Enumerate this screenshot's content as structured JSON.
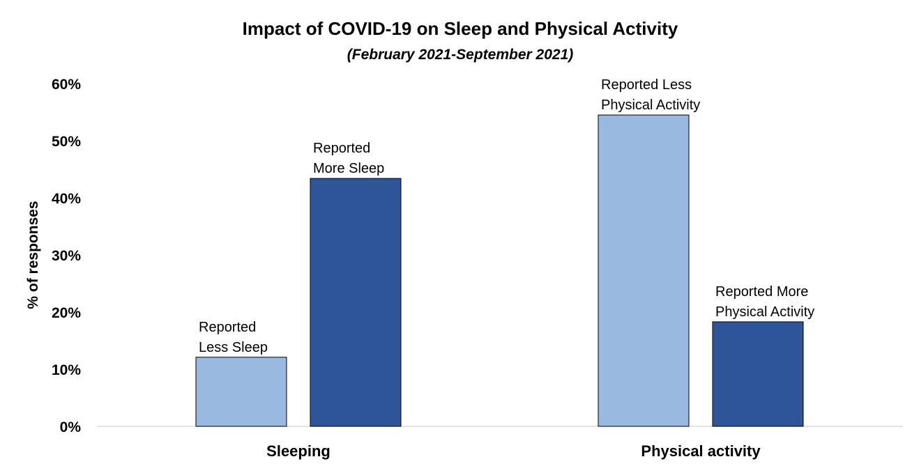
{
  "chart_data": {
    "type": "bar",
    "title": "Impact of COVID-19 on Sleep and Physical Activity",
    "subtitle": "(February 2021-September 2021)",
    "xlabel": "",
    "ylabel": "% of responses",
    "ylim": [
      0,
      60
    ],
    "yticks": [
      "0%",
      "10%",
      "20%",
      "30%",
      "40%",
      "50%",
      "60%"
    ],
    "categories": [
      "Sleeping",
      "Physical activity"
    ],
    "bars": [
      {
        "category": 0,
        "slot": 0,
        "value": 12.1,
        "label_lines": [
          "Reported",
          "Less Sleep"
        ],
        "color": "#9AB9E0"
      },
      {
        "category": 0,
        "slot": 1,
        "value": 43.4,
        "label_lines": [
          "Reported",
          "More Sleep"
        ],
        "color": "#2E5597"
      },
      {
        "category": 1,
        "slot": 0,
        "value": 54.5,
        "label_lines": [
          "Reported Less",
          "Physical Activity"
        ],
        "color": "#9AB9E0"
      },
      {
        "category": 1,
        "slot": 1,
        "value": 18.3,
        "label_lines": [
          "Reported More",
          "Physical Activity"
        ],
        "color": "#2E5597"
      }
    ],
    "grid": false,
    "legend": "none",
    "colors": {
      "light": "#9AB9E0",
      "dark": "#2E5597",
      "axis": "#D9D9D9"
    }
  }
}
